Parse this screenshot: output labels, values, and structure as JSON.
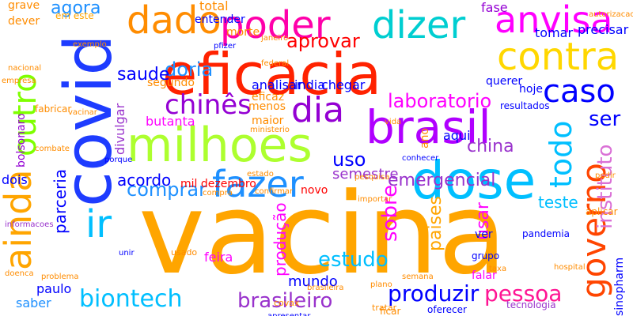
{
  "words": [
    {
      "text": "vacina",
      "color": "#ffa500"
    },
    {
      "text": "eficacia",
      "color": "#ff2200"
    },
    {
      "text": "covid",
      "color": "#1e3cff"
    },
    {
      "text": "dose",
      "color": "#00bfff"
    },
    {
      "text": "milhoes",
      "color": "#adff2f"
    },
    {
      "text": "brasil",
      "color": "#b000ff"
    },
    {
      "text": "contra",
      "color": "#ffd700"
    },
    {
      "text": "poder",
      "color": "#ff00aa"
    },
    {
      "text": "dizer",
      "color": "#00ced1"
    },
    {
      "text": "anvisa",
      "color": "#ff00ff"
    },
    {
      "text": "dado",
      "color": "#ff8c00"
    },
    {
      "text": "fazer",
      "color": "#1e90ff"
    },
    {
      "text": "ainda",
      "color": "#ffa500"
    },
    {
      "text": "outro",
      "color": "#7fff00"
    },
    {
      "text": "governo",
      "color": "#ff4500"
    },
    {
      "text": "instituto",
      "color": "#da70d6"
    },
    {
      "text": "caso",
      "color": "#0000ff"
    },
    {
      "text": "todo",
      "color": "#00bfff"
    },
    {
      "text": "dia",
      "color": "#9400d3"
    },
    {
      "text": "ir",
      "color": "#00bfff"
    },
    {
      "text": "biontech",
      "color": "#00bfff"
    },
    {
      "text": "brasileiro",
      "color": "#9932cc"
    },
    {
      "text": "produzir",
      "color": "#0000ff"
    },
    {
      "text": "pessoa",
      "color": "#ff1493"
    },
    {
      "text": "chinês",
      "color": "#9400d3"
    },
    {
      "text": "laboratorio",
      "color": "#ff00ff"
    },
    {
      "text": "comprar",
      "color": "#1e90ff"
    },
    {
      "text": "aprovar",
      "color": "#ff0000"
    },
    {
      "text": "doria",
      "color": "#1e90ff"
    },
    {
      "text": "saude",
      "color": "#0000ff"
    },
    {
      "text": "china",
      "color": "#9932cc"
    },
    {
      "text": "estudo",
      "color": "#00bfff"
    },
    {
      "text": "sobre",
      "color": "#ff00ff"
    },
    {
      "text": "parceria",
      "color": "#0000ff"
    },
    {
      "text": "emergencial",
      "color": "#9932cc"
    },
    {
      "text": "usar",
      "color": "#ff00ff"
    },
    {
      "text": "paises",
      "color": "#ffa500"
    },
    {
      "text": "acordo",
      "color": "#0000ff"
    },
    {
      "text": "produção",
      "color": "#ff00ff"
    },
    {
      "text": "uso",
      "color": "#0000ff"
    },
    {
      "text": "semestre",
      "color": "#9932cc"
    },
    {
      "text": "teste",
      "color": "#00bfff"
    },
    {
      "text": "ser",
      "color": "#0000ff"
    },
    {
      "text": "agora",
      "color": "#1e90ff"
    },
    {
      "text": "mundo",
      "color": "#0000ff"
    },
    {
      "text": "paulo",
      "color": "#0000ff"
    },
    {
      "text": "saber",
      "color": "#1e90ff"
    },
    {
      "text": "sinopharm",
      "color": "#0000ff"
    },
    {
      "text": "fase",
      "color": "#9400d3"
    },
    {
      "text": "tomar",
      "color": "#0000ff"
    },
    {
      "text": "precisar",
      "color": "#0000ff"
    },
    {
      "text": "chegar",
      "color": "#0000ff"
    },
    {
      "text": "india",
      "color": "#0000ff"
    },
    {
      "text": "analisar",
      "color": "#0000ff"
    },
    {
      "text": "querer",
      "color": "#0000ff"
    },
    {
      "text": "hoje",
      "color": "#0000ff"
    },
    {
      "text": "morte",
      "color": "#ff8c00"
    },
    {
      "text": "total",
      "color": "#ff8c00"
    },
    {
      "text": "entender",
      "color": "#0000ff"
    },
    {
      "text": "dever",
      "color": "#ff8c00"
    },
    {
      "text": "em este",
      "color": "#ffa500"
    },
    {
      "text": "grave",
      "color": "#ff8c00"
    },
    {
      "text": "divulgar",
      "color": "#9932cc"
    },
    {
      "text": "butanta",
      "color": "#ff00ff"
    },
    {
      "text": "eficaz",
      "color": "#ff8c00"
    },
    {
      "text": "menos",
      "color": "#ff8c00"
    },
    {
      "text": "maior",
      "color": "#ff8c00"
    },
    {
      "text": "aqui",
      "color": "#0000ff"
    },
    {
      "text": "ano",
      "color": "#ff8c00"
    },
    {
      "text": "feira",
      "color": "#ff00ff"
    },
    {
      "text": "segundo",
      "color": "#ff8c00"
    },
    {
      "text": "mil dezembro",
      "color": "#ff0000"
    },
    {
      "text": "novo",
      "color": "#ff0000"
    },
    {
      "text": "bolsonaro",
      "color": "#9400d3"
    },
    {
      "text": "dois",
      "color": "#0000ff"
    },
    {
      "text": "fabricar",
      "color": "#ff8c00"
    },
    {
      "text": "aplicar",
      "color": "#ff8c00"
    },
    {
      "text": "resultados",
      "color": "#0000ff"
    },
    {
      "text": "falar",
      "color": "#ff00ff"
    },
    {
      "text": "grupo",
      "color": "#0000ff"
    },
    {
      "text": "ver",
      "color": "#0000ff"
    },
    {
      "text": "pandemia",
      "color": "#0000ff"
    },
    {
      "text": "tecnologia",
      "color": "#9932cc"
    },
    {
      "text": "oferecer",
      "color": "#0000ff"
    },
    {
      "text": "ficar",
      "color": "#ff8c00"
    },
    {
      "text": "covax",
      "color": "#ff8c00"
    },
    {
      "text": "apresentar",
      "color": "#0000ff"
    },
    {
      "text": "informacoes",
      "color": "#9932cc"
    },
    {
      "text": "janeiro",
      "color": "#ff8c00"
    },
    {
      "text": "federal",
      "color": "#ff8c00"
    },
    {
      "text": "pfizer",
      "color": "#0000ff"
    },
    {
      "text": "tratar",
      "color": "#ff8c00"
    },
    {
      "text": "usado",
      "color": "#ff8c00"
    },
    {
      "text": "vacinar",
      "color": "#ff8c00"
    },
    {
      "text": "importar",
      "color": "#ff8c00"
    },
    {
      "text": "nacional",
      "color": "#ff8c00"
    },
    {
      "text": "empresa",
      "color": "#ff8c00"
    },
    {
      "text": "combate",
      "color": "#ff8c00"
    },
    {
      "text": "compra",
      "color": "#ff8c00"
    },
    {
      "text": "confirmar",
      "color": "#ff8c00"
    },
    {
      "text": "pedir",
      "color": "#ff8c00"
    },
    {
      "text": "autorizacao",
      "color": "#ff8c00"
    },
    {
      "text": "vida",
      "color": "#ff8c00"
    },
    {
      "text": "porque",
      "color": "#0000ff"
    },
    {
      "text": "ministerio",
      "color": "#ff8c00"
    },
    {
      "text": "unir",
      "color": "#0000ff"
    },
    {
      "text": "estado",
      "color": "#ff8c00"
    },
    {
      "text": "hospital",
      "color": "#ff8c00"
    },
    {
      "text": "doenca",
      "color": "#ff8c00"
    },
    {
      "text": "problema",
      "color": "#ff8c00"
    },
    {
      "text": "conhecer",
      "color": "#0000ff"
    },
    {
      "text": "brasileira",
      "color": "#ff8c00"
    },
    {
      "text": "pesquisa",
      "color": "#ff8c00"
    },
    {
      "text": "exemplo",
      "color": "#ff8c00"
    },
    {
      "text": "plano",
      "color": "#ff8c00"
    },
    {
      "text": "semana",
      "color": "#ff8c00"
    },
    {
      "text": "taxa",
      "color": "#ff8c00"
    }
  ]
}
